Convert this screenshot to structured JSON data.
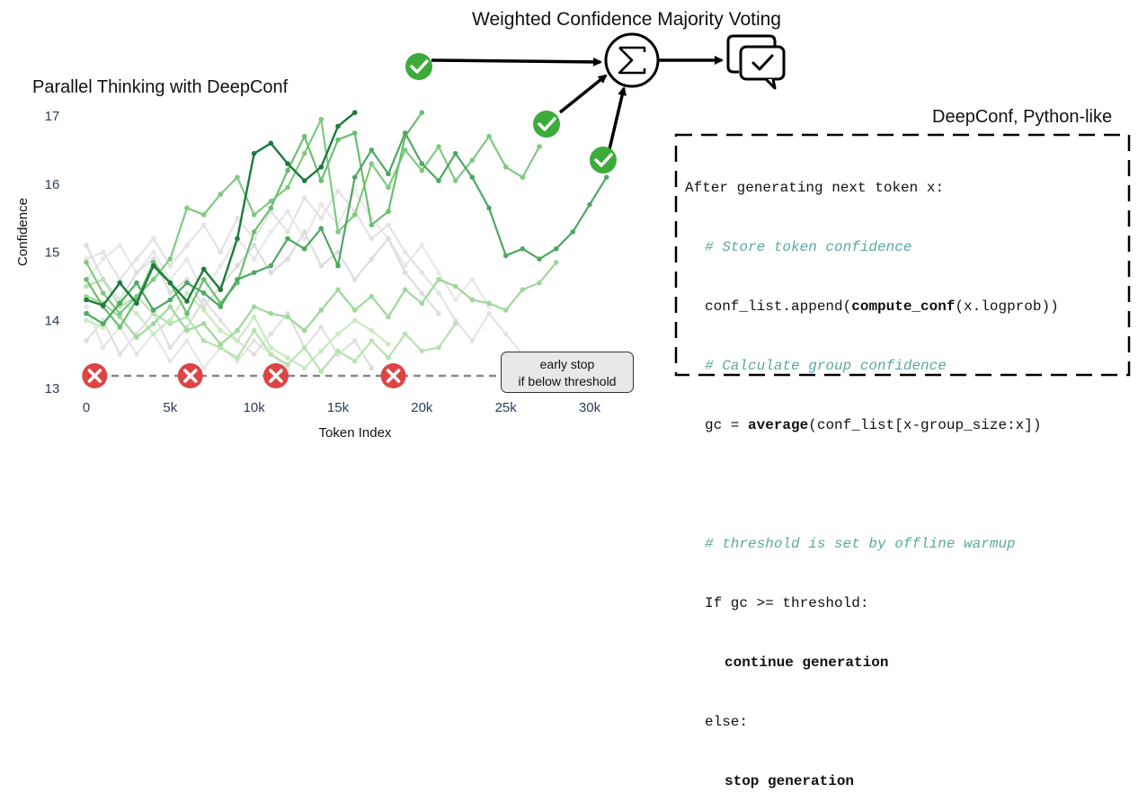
{
  "titles": {
    "main": "Weighted Confidence Majority Voting",
    "left": "Parallel Thinking with DeepConf",
    "code": "DeepConf, Python-like"
  },
  "chart_data": {
    "type": "line",
    "xlabel": "Token Index",
    "ylabel": "Confidence",
    "xlim": [
      0,
      32000
    ],
    "ylim": [
      13,
      17.4
    ],
    "x_ticks": [
      0,
      5000,
      10000,
      15000,
      20000,
      25000,
      30000
    ],
    "x_tick_labels": [
      "0",
      "5k",
      "10k",
      "15k",
      "20k",
      "25k",
      "30k"
    ],
    "y_ticks": [
      13,
      14,
      15,
      16,
      17
    ],
    "y_tick_labels": [
      "13",
      "14",
      "15",
      "16",
      "17"
    ],
    "threshold": 13.18,
    "series": [
      {
        "name": "trace-dark",
        "color": "#1e7a3c",
        "x": [
          0,
          1000,
          2000,
          3000,
          4000,
          5000,
          6000,
          7000,
          8000,
          9000,
          10000,
          11000,
          12000,
          13000,
          14000,
          15000,
          16000
        ],
        "y": [
          14.3,
          14.22,
          14.55,
          14.25,
          14.8,
          14.55,
          14.28,
          14.75,
          14.45,
          15.2,
          16.45,
          16.6,
          16.3,
          16.05,
          16.25,
          16.85,
          17.05
        ]
      },
      {
        "name": "trace-green-a",
        "color": "#4fa860",
        "x": [
          0,
          1000,
          2000,
          3000,
          4000,
          5000,
          6000,
          7000,
          8000,
          9000,
          10000,
          11000,
          12000,
          13000,
          14000,
          15000,
          16000,
          17000,
          18000,
          19000,
          20000,
          21000,
          22000,
          23000,
          24000,
          25000,
          26000,
          27000,
          28000,
          29000,
          30000,
          31000
        ],
        "y": [
          14.1,
          13.95,
          14.25,
          14.55,
          14.15,
          14.3,
          14.55,
          14.4,
          14.2,
          14.6,
          14.7,
          14.8,
          15.2,
          15.05,
          15.35,
          14.8,
          16.1,
          16.5,
          16.15,
          16.75,
          16.3,
          16.05,
          16.45,
          16.1,
          15.65,
          14.95,
          15.05,
          14.9,
          15.05,
          15.3,
          15.7,
          16.1
        ]
      },
      {
        "name": "trace-green-b",
        "color": "#6abf6e",
        "x": [
          0,
          1000,
          2000,
          3000,
          4000,
          5000,
          6000,
          7000,
          8000,
          9000,
          10000,
          11000,
          12000,
          13000,
          14000,
          15000,
          16000,
          17000,
          18000,
          19000,
          20000
        ],
        "y": [
          14.6,
          14.2,
          13.9,
          14.3,
          14.85,
          14.55,
          14.1,
          14.6,
          14.25,
          14.55,
          15.3,
          15.65,
          16.2,
          16.7,
          16.05,
          16.65,
          16.75,
          15.4,
          15.6,
          16.7,
          17.05
        ]
      },
      {
        "name": "trace-green-c",
        "color": "#7fca80",
        "x": [
          0,
          1000,
          2000,
          3000,
          4000,
          5000,
          6000,
          7000,
          8000,
          9000,
          10000,
          11000,
          12000,
          13000,
          14000,
          15000,
          16000,
          17000,
          18000,
          19000,
          20000,
          21000,
          22000,
          23000,
          24000,
          25000,
          26000,
          27000
        ],
        "y": [
          14.85,
          14.4,
          14.1,
          14.35,
          14.6,
          14.9,
          15.65,
          15.55,
          15.85,
          16.1,
          15.55,
          15.75,
          15.95,
          16.45,
          16.95,
          15.3,
          15.55,
          16.3,
          15.95,
          16.5,
          16.2,
          16.55,
          16.05,
          16.35,
          16.7,
          16.25,
          16.1,
          16.55
        ]
      },
      {
        "name": "trace-green-d",
        "color": "#9fd89c",
        "x": [
          0,
          1000,
          2000,
          3000,
          4000,
          5000,
          6000,
          7000,
          8000,
          9000,
          10000,
          11000,
          12000,
          13000,
          14000,
          15000,
          16000,
          17000,
          18000,
          19000,
          20000,
          21000,
          22000,
          23000,
          24000,
          25000,
          26000,
          27000,
          28000
        ],
        "y": [
          14.35,
          14.25,
          14.05,
          13.75,
          13.95,
          14.2,
          13.85,
          13.95,
          13.65,
          13.85,
          14.2,
          14.1,
          14.05,
          13.85,
          14.15,
          14.45,
          14.15,
          14.35,
          14.05,
          14.45,
          14.25,
          14.6,
          14.5,
          14.3,
          14.25,
          14.15,
          14.45,
          14.55,
          14.85
        ]
      },
      {
        "name": "trace-green-e",
        "color": "#b7e2b1",
        "x": [
          0,
          1000,
          2000,
          3000,
          4000,
          5000,
          6000,
          7000,
          8000,
          9000,
          10000,
          11000,
          12000,
          13000,
          14000,
          15000,
          16000,
          17000,
          18000,
          19000,
          20000,
          21000,
          22000
        ],
        "y": [
          14.5,
          14.6,
          14.2,
          14.35,
          14.1,
          13.95,
          14.05,
          13.7,
          13.6,
          13.45,
          13.85,
          13.5,
          13.35,
          13.6,
          13.25,
          13.55,
          13.4,
          13.7,
          13.45,
          13.8,
          13.55,
          13.6,
          13.95
        ]
      },
      {
        "name": "trace-green-f",
        "color": "#c8ebbf",
        "x": [
          0,
          1000,
          2000,
          3000,
          4000,
          5000,
          6000,
          7000,
          8000,
          9000,
          10000,
          11000,
          12000,
          13000,
          14000,
          15000,
          16000,
          17000,
          18000
        ],
        "y": [
          14.0,
          13.9,
          14.3,
          14.1,
          13.8,
          14.0,
          14.4,
          14.15,
          13.85,
          13.7,
          14.05,
          13.6,
          13.45,
          13.3,
          13.55,
          13.8,
          14.0,
          13.85,
          13.65
        ]
      },
      {
        "name": "trace-gray-a",
        "color": "#dddddd",
        "x": [
          0,
          1000,
          2000,
          3000,
          4000,
          5000,
          6000,
          7000,
          8000,
          9000,
          10000,
          11000,
          12000,
          13000,
          14000,
          15000,
          16000,
          17000,
          18000,
          19000,
          20000,
          21000
        ],
        "y": [
          15.1,
          14.6,
          14.3,
          14.7,
          14.9,
          14.4,
          14.6,
          14.2,
          14.5,
          14.8,
          15.1,
          14.7,
          14.9,
          15.3,
          14.8,
          15.0,
          14.6,
          14.9,
          15.2,
          14.7,
          14.4,
          14.1
        ]
      },
      {
        "name": "trace-gray-b",
        "color": "#e0e0e0",
        "x": [
          0,
          1000,
          2000,
          3000,
          4000,
          5000,
          6000,
          7000,
          8000,
          9000,
          10000,
          11000,
          12000,
          13000,
          14000,
          15000,
          16000,
          17000
        ],
        "y": [
          13.7,
          14.0,
          13.5,
          13.8,
          14.1,
          13.6,
          13.9,
          14.3,
          14.0,
          13.7,
          13.5,
          13.8,
          14.1,
          13.6,
          13.9,
          13.5,
          13.7,
          13.3
        ]
      },
      {
        "name": "trace-gray-c",
        "color": "#e3e3e3",
        "x": [
          0,
          1000,
          2000,
          3000,
          4000,
          5000,
          6000,
          7000,
          8000,
          9000,
          10000,
          11000,
          12000,
          13000,
          14000,
          15000,
          16000,
          17000,
          18000,
          19000,
          20000,
          21000,
          22000,
          23000,
          24000,
          25000,
          26000,
          27000
        ],
        "y": [
          14.9,
          15.0,
          14.6,
          14.9,
          15.2,
          14.8,
          15.1,
          15.4,
          15.0,
          15.5,
          15.2,
          15.6,
          15.3,
          15.8,
          15.5,
          15.9,
          15.6,
          15.2,
          15.4,
          15.0,
          14.7,
          14.4,
          14.0,
          13.7,
          14.1,
          13.8,
          13.5,
          13.4
        ]
      },
      {
        "name": "trace-gray-d",
        "color": "#e6e6e6",
        "x": [
          0,
          1000,
          2000,
          3000,
          4000,
          5000,
          6000,
          7000,
          8000,
          9000,
          10000,
          11000,
          12000
        ],
        "y": [
          14.2,
          13.6,
          13.9,
          13.5,
          13.8,
          13.4,
          13.7,
          13.3,
          13.6,
          13.4,
          13.7,
          13.5,
          13.3
        ]
      },
      {
        "name": "trace-gray-e",
        "color": "#e8e8e8",
        "x": [
          0,
          1000,
          2000,
          3000,
          4000,
          5000,
          6000,
          7000,
          8000,
          9000,
          10000,
          11000,
          12000,
          13000,
          14000,
          15000,
          16000,
          17000,
          18000,
          19000,
          20000,
          21000,
          22000,
          23000,
          24000
        ],
        "y": [
          14.6,
          14.9,
          15.1,
          14.7,
          15.0,
          14.6,
          14.9,
          14.4,
          14.8,
          15.2,
          14.9,
          15.3,
          15.6,
          15.2,
          15.7,
          15.4,
          15.9,
          15.5,
          15.2,
          14.8,
          15.1,
          14.7,
          14.3,
          14.6,
          14.2
        ]
      }
    ],
    "stopped_traces_x": [
      500,
      6200,
      11300,
      18300
    ]
  },
  "stop_note": {
    "line1": "early stop",
    "line2": "if below threshold"
  },
  "code": {
    "header": "After generating next token x:",
    "c1": "# Store token confidence",
    "l2_pre": "conf_list.append(",
    "l2_fn": "compute_conf",
    "l2_post": "(x.logprob))",
    "c2": "# Calculate group confidence",
    "l4_pre": "gc = ",
    "l4_fn": "average",
    "l4_post": "(conf_list[x-group_size:x])",
    "c3": "# threshold is set by offline warmup",
    "if_line": "If gc >= threshold:",
    "continue": "continue generation",
    "else": "else:",
    "stop": "stop generation"
  },
  "icons": {
    "sum": "sigma-icon",
    "vote": "chat-check-icon"
  },
  "colors": {
    "check_green": "#3cab3a",
    "stop_red": "#dd4444",
    "axis_text": "#2b3d5c"
  }
}
